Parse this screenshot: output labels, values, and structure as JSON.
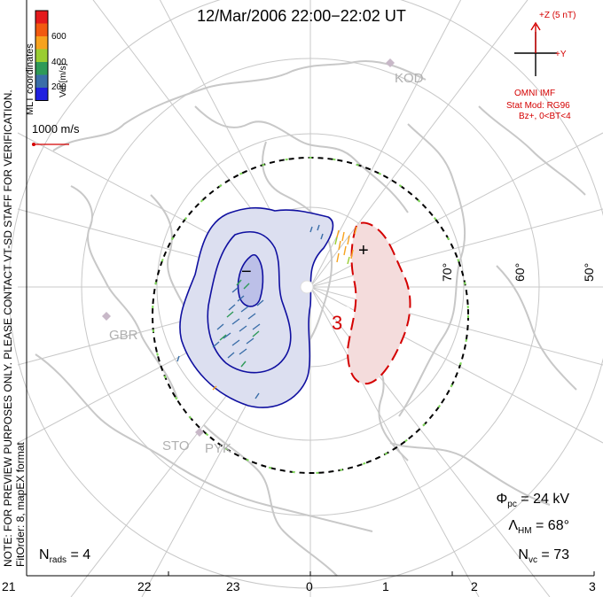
{
  "title": "12/Mar/2006  22:00−22:02  UT",
  "sidebar_note_line1": "NOTE: FOR PREVIEW PURPOSES ONLY. PLEASE CONTACT VT-SD STAFF FOR VERIFICATION.",
  "sidebar_note_line2": "FitOrder: 8, mapEX format",
  "coord_label": "MLT coordinates",
  "colorbar": {
    "label": "Vel [m/s]",
    "ticks": [
      "600",
      "400",
      "200"
    ],
    "colors": [
      "#e41a1c",
      "#f25a10",
      "#f7a21e",
      "#9acd32",
      "#2e9a58",
      "#3a6ea8",
      "#2020e0"
    ]
  },
  "ref_vector_label": "1000 m/s",
  "imf": {
    "z_label": "+Z (5 nT)",
    "y_label": "+Y",
    "source": "OMNI IMF",
    "model": "Stat Mod: RG96",
    "condition": "Bz+, 0<BT<4"
  },
  "stations": [
    "KOD",
    "GBR",
    "STO",
    "PYK"
  ],
  "lat_labels": [
    "70°",
    "60°",
    "50°"
  ],
  "mlt_labels": [
    "21",
    "22",
    "23",
    "0",
    "1",
    "2",
    "3"
  ],
  "potential_markers": {
    "min": "−",
    "max": "+",
    "contour_label": "3"
  },
  "stats": {
    "phi_pc": {
      "sym": "Φ",
      "sub": "pc",
      "value": "= 24 kV"
    },
    "lambda_hm": {
      "sym": "Λ",
      "sub": "HM",
      "value": "= 68°"
    },
    "n_vc": {
      "sym": "N",
      "sub": "vc",
      "value": "= 73"
    },
    "n_rads": {
      "sym": "N",
      "sub": "rads",
      "value": "= 4"
    }
  },
  "colors": {
    "neg_fill": "#dcdff0",
    "pos_fill": "#f4dcdc",
    "neg_line": "#1010a0",
    "pos_line": "#d40000",
    "grid": "#c8c8c8",
    "land": "#c8c8c8",
    "hmb": "#000000",
    "hmb_dash": "#7ed957"
  }
}
